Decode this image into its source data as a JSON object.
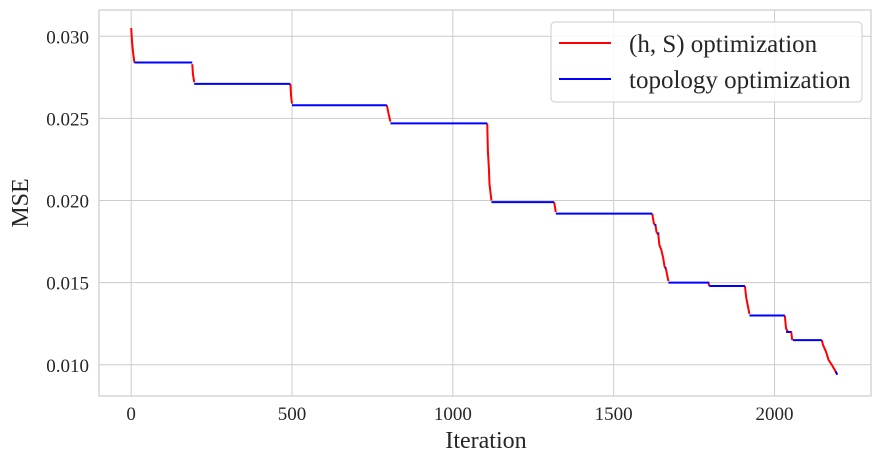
{
  "chart_data": {
    "type": "line",
    "title": "",
    "xlabel": "Iteration",
    "ylabel": "MSE",
    "xlim": [
      -100,
      2300
    ],
    "ylim": [
      0.0081,
      0.0316
    ],
    "x_ticks": [
      0,
      500,
      1000,
      1500,
      2000
    ],
    "x_tick_labels": [
      "0",
      "500",
      "1000",
      "1500",
      "2000"
    ],
    "y_ticks": [
      0.01,
      0.015,
      0.02,
      0.025,
      0.03
    ],
    "y_tick_labels": [
      "0.010",
      "0.015",
      "0.020",
      "0.025",
      "0.030"
    ],
    "grid": true,
    "legend_position": "top-right",
    "series": [
      {
        "name": "(h, S) optimization",
        "color": "#ff0000",
        "segments": [
          [
            [
              0,
              0.0305
            ],
            [
              3,
              0.0296
            ],
            [
              6,
              0.029
            ],
            [
              10,
              0.0284
            ]
          ],
          [
            [
              190,
              0.0283
            ],
            [
              192,
              0.0277
            ],
            [
              196,
              0.0272
            ]
          ],
          [
            [
              495,
              0.0271
            ],
            [
              497,
              0.0264
            ],
            [
              500,
              0.0259
            ]
          ],
          [
            [
              795,
              0.0258
            ],
            [
              800,
              0.0253
            ],
            [
              806,
              0.0248
            ]
          ],
          [
            [
              1107,
              0.0247
            ],
            [
              1109,
              0.023
            ],
            [
              1112,
              0.022
            ],
            [
              1114,
              0.021
            ],
            [
              1117,
              0.0205
            ],
            [
              1120,
              0.02
            ]
          ],
          [
            [
              1315,
              0.0199
            ],
            [
              1320,
              0.0193
            ]
          ],
          [
            [
              1620,
              0.0192
            ],
            [
              1625,
              0.0186
            ],
            [
              1630,
              0.0185
            ],
            [
              1633,
              0.0181
            ],
            [
              1639,
              0.0179
            ],
            [
              1642,
              0.0173
            ],
            [
              1648,
              0.017
            ],
            [
              1654,
              0.0165
            ],
            [
              1658,
              0.016
            ],
            [
              1663,
              0.0158
            ],
            [
              1667,
              0.0154
            ],
            [
              1670,
              0.0151
            ]
          ],
          [
            [
              1795,
              0.015
            ],
            [
              1797,
              0.0148
            ]
          ],
          [
            [
              1908,
              0.0148
            ],
            [
              1912,
              0.0141
            ],
            [
              1915,
              0.0138
            ],
            [
              1918,
              0.0135
            ],
            [
              1922,
              0.0131
            ]
          ],
          [
            [
              2032,
              0.013
            ],
            [
              2036,
              0.0122
            ],
            [
              2042,
              0.012
            ],
            [
              2052,
              0.012
            ],
            [
              2055,
              0.0115
            ]
          ],
          [
            [
              2147,
              0.0115
            ],
            [
              2151,
              0.0112
            ],
            [
              2160,
              0.0108
            ],
            [
              2168,
              0.0103
            ],
            [
              2178,
              0.01
            ],
            [
              2187,
              0.0097
            ],
            [
              2195,
              0.0094
            ]
          ]
        ]
      },
      {
        "name": "topology optimization",
        "color": "#0000ff",
        "segments": [
          [
            [
              10,
              0.0284
            ],
            [
              190,
              0.0284
            ]
          ],
          [
            [
              196,
              0.0271
            ],
            [
              495,
              0.0271
            ]
          ],
          [
            [
              500,
              0.0258
            ],
            [
              795,
              0.0258
            ]
          ],
          [
            [
              806,
              0.0247
            ],
            [
              1107,
              0.0247
            ]
          ],
          [
            [
              1120,
              0.0199
            ],
            [
              1315,
              0.0199
            ]
          ],
          [
            [
              1320,
              0.0192
            ],
            [
              1620,
              0.0192
            ]
          ],
          [
            [
              1627,
              0.0185
            ],
            [
              1633,
              0.0185
            ]
          ],
          [
            [
              1637,
              0.018
            ],
            [
              1642,
              0.018
            ]
          ],
          [
            [
              1660,
              0.0159
            ],
            [
              1664,
              0.0159
            ]
          ],
          [
            [
              1670,
              0.015
            ],
            [
              1797,
              0.015
            ]
          ],
          [
            [
              1797,
              0.0148
            ],
            [
              1908,
              0.0148
            ]
          ],
          [
            [
              1922,
              0.013
            ],
            [
              2032,
              0.013
            ]
          ],
          [
            [
              2036,
              0.012
            ],
            [
              2052,
              0.012
            ]
          ],
          [
            [
              2057,
              0.0115
            ],
            [
              2147,
              0.0115
            ]
          ],
          [
            [
              2190,
              0.0096
            ],
            [
              2195,
              0.0094
            ]
          ]
        ]
      }
    ]
  }
}
